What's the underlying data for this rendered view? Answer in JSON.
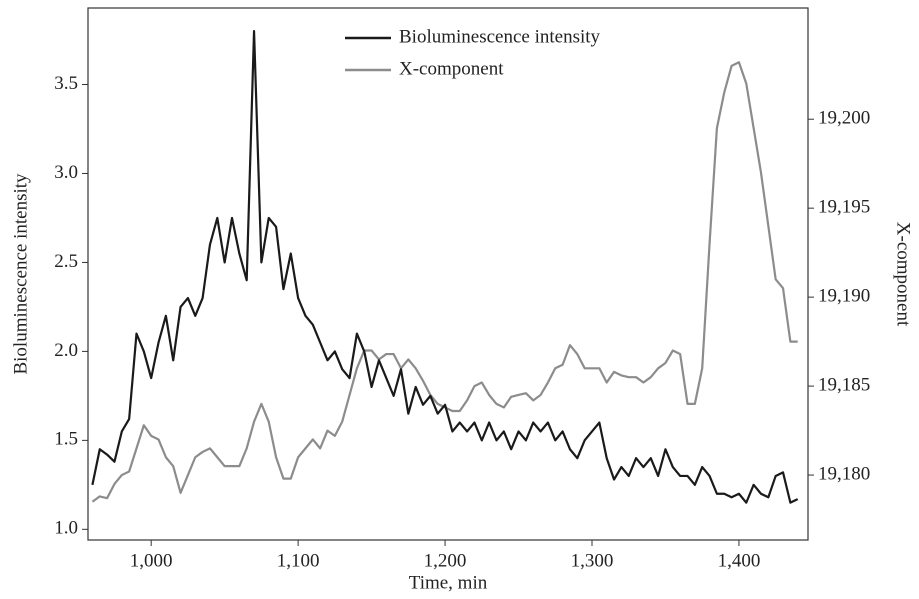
{
  "chart_data": {
    "type": "line",
    "xlabel": "Time, min",
    "ylabel": "Bioluminescence intensity",
    "y2label": "X-component",
    "x": [
      960,
      965,
      970,
      975,
      980,
      985,
      990,
      995,
      1000,
      1005,
      1010,
      1015,
      1020,
      1025,
      1030,
      1035,
      1040,
      1045,
      1050,
      1055,
      1060,
      1065,
      1070,
      1075,
      1080,
      1085,
      1090,
      1095,
      1100,
      1105,
      1110,
      1115,
      1120,
      1125,
      1130,
      1135,
      1140,
      1145,
      1150,
      1155,
      1160,
      1165,
      1170,
      1175,
      1180,
      1185,
      1190,
      1195,
      1200,
      1205,
      1210,
      1215,
      1220,
      1225,
      1230,
      1235,
      1240,
      1245,
      1250,
      1255,
      1260,
      1265,
      1270,
      1275,
      1280,
      1285,
      1290,
      1295,
      1300,
      1305,
      1310,
      1315,
      1320,
      1325,
      1330,
      1335,
      1340,
      1345,
      1350,
      1355,
      1360,
      1365,
      1370,
      1375,
      1380,
      1385,
      1390,
      1395,
      1400,
      1405,
      1410,
      1415,
      1420,
      1425,
      1430,
      1435,
      1440
    ],
    "series": [
      {
        "name": "Bioluminescence intensity",
        "color": "#1a1a1a",
        "values": [
          1.25,
          1.45,
          1.42,
          1.38,
          1.55,
          1.62,
          2.1,
          2.0,
          1.85,
          2.05,
          2.2,
          1.95,
          2.25,
          2.3,
          2.2,
          2.3,
          2.6,
          2.75,
          2.5,
          2.75,
          2.55,
          2.4,
          3.8,
          2.5,
          2.75,
          2.7,
          2.35,
          2.55,
          2.3,
          2.2,
          2.15,
          2.05,
          1.95,
          2.0,
          1.9,
          1.85,
          2.1,
          2.0,
          1.8,
          1.95,
          1.85,
          1.75,
          1.9,
          1.65,
          1.8,
          1.7,
          1.75,
          1.65,
          1.7,
          1.55,
          1.6,
          1.55,
          1.6,
          1.5,
          1.6,
          1.5,
          1.55,
          1.45,
          1.55,
          1.5,
          1.6,
          1.55,
          1.6,
          1.5,
          1.55,
          1.45,
          1.4,
          1.5,
          1.55,
          1.6,
          1.4,
          1.28,
          1.35,
          1.3,
          1.4,
          1.35,
          1.4,
          1.3,
          1.45,
          1.35,
          1.3,
          1.3,
          1.25,
          1.35,
          1.3,
          1.2,
          1.2,
          1.18,
          1.2,
          1.15,
          1.25,
          1.2,
          1.18,
          1.3,
          1.32,
          1.15,
          1.17
        ]
      },
      {
        "name": "X-component",
        "color": "#8c8c8c",
        "axis": "y2",
        "values": [
          19178.5,
          19178.8,
          19178.7,
          19179.5,
          19180,
          19180.2,
          19181.5,
          19182.8,
          19182.2,
          19182,
          19181,
          19180.5,
          19179,
          19180,
          19181,
          19181.3,
          19181.5,
          19181,
          19180.5,
          19180.5,
          19180.5,
          19181.5,
          19183,
          19184,
          19183,
          19181,
          19179.8,
          19179.8,
          19181,
          19181.5,
          19182,
          19181.5,
          19182.5,
          19182.2,
          19183,
          19184.5,
          19186,
          19187,
          19187,
          19186.5,
          19186.8,
          19186.8,
          19186,
          19186.5,
          19186,
          19185.3,
          19184.5,
          19184,
          19183.8,
          19183.6,
          19183.6,
          19184.2,
          19185,
          19185.2,
          19184.5,
          19184,
          19183.8,
          19184.4,
          19184.5,
          19184.6,
          19184.2,
          19184.5,
          19185.2,
          19186,
          19186.2,
          19187.3,
          19186.8,
          19186,
          19186,
          19186,
          19185.2,
          19185.8,
          19185.6,
          19185.5,
          19185.5,
          19185.2,
          19185.5,
          19186,
          19186.3,
          19187,
          19186.8,
          19184,
          19184,
          19186,
          19193,
          19199.5,
          19201.5,
          19203,
          19203.2,
          19202,
          19199.5,
          19197,
          19194,
          19191,
          19190.5,
          19187.5,
          19187.5
        ]
      }
    ],
    "xlim": [
      957,
      1447
    ],
    "xticks": [
      {
        "value": 1000,
        "label": "1,000"
      },
      {
        "value": 1100,
        "label": "1,100"
      },
      {
        "value": 1200,
        "label": "1,200"
      },
      {
        "value": 1300,
        "label": "1,300"
      },
      {
        "value": 1400,
        "label": "1,400"
      }
    ],
    "ylim": [
      0.94,
      3.93
    ],
    "yticks": [
      {
        "value": 1,
        "label": "1.0"
      },
      1.5,
      {
        "value": 2,
        "label": "2.0"
      },
      2.5,
      {
        "value": 3,
        "label": "3.0"
      },
      3.5
    ],
    "y2lim": [
      19176.35,
      19206.25
    ],
    "y2ticks": [
      {
        "value": 19180,
        "label": "19,180"
      },
      {
        "value": 19185,
        "label": "19,185"
      },
      {
        "value": 19190,
        "label": "19,190"
      },
      {
        "value": 19195,
        "label": "19,195"
      },
      {
        "value": 19200,
        "label": "19,200"
      }
    ],
    "legend": "upper center"
  }
}
